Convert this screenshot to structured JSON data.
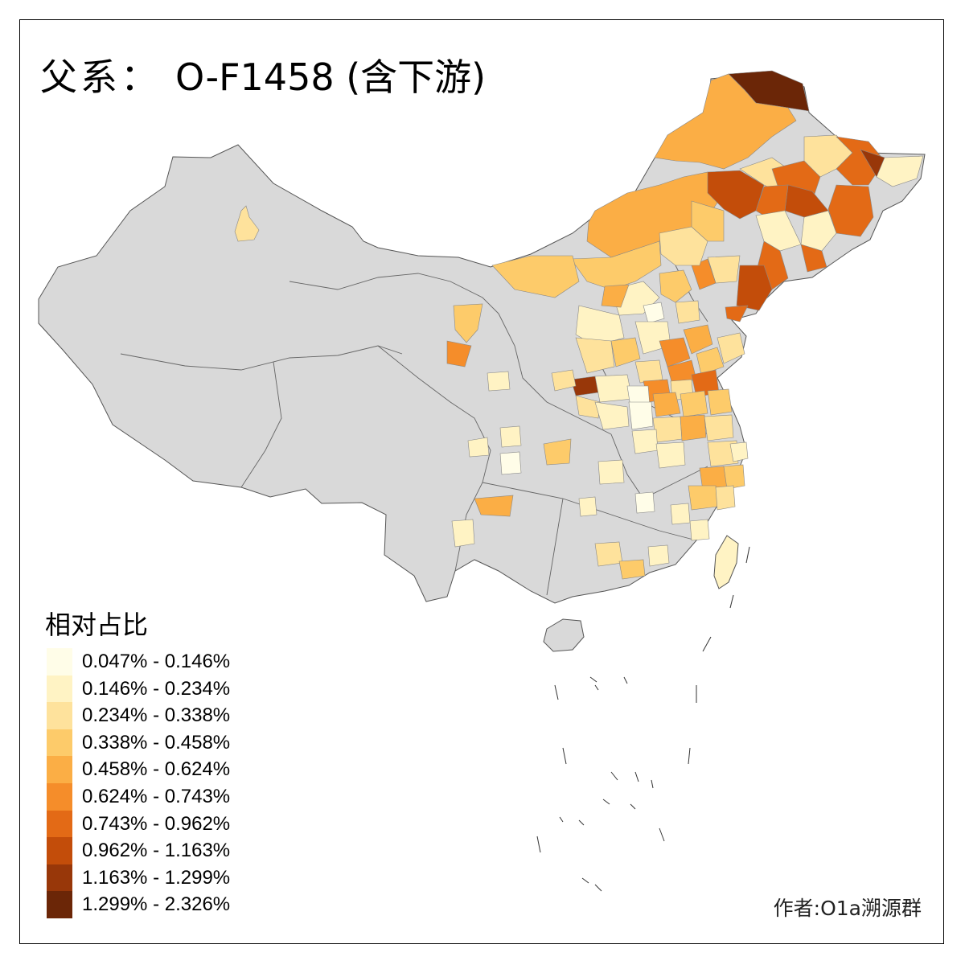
{
  "title": {
    "prefix": "父系：",
    "haplogroup": "O-F1458 (含下游)"
  },
  "legend": {
    "title": "相对占比",
    "items": [
      {
        "label": "0.047% - 0.146%",
        "color": "#FFFDE8"
      },
      {
        "label": "0.146% - 0.234%",
        "color": "#FFF3C4"
      },
      {
        "label": "0.234% - 0.338%",
        "color": "#FEE29C"
      },
      {
        "label": "0.338% - 0.458%",
        "color": "#FDCB6A"
      },
      {
        "label": "0.458% - 0.624%",
        "color": "#FBAE45"
      },
      {
        "label": "0.624% - 0.743%",
        "color": "#F58D2A"
      },
      {
        "label": "0.743% - 0.962%",
        "color": "#E36A16"
      },
      {
        "label": "0.962% - 1.163%",
        "color": "#C34D0A"
      },
      {
        "label": "1.163% - 1.299%",
        "color": "#983709"
      },
      {
        "label": "1.299% - 2.326%",
        "color": "#6B2607"
      }
    ]
  },
  "no_data_color": "#D9D9D9",
  "credit": "作者:O1a溯源群"
}
